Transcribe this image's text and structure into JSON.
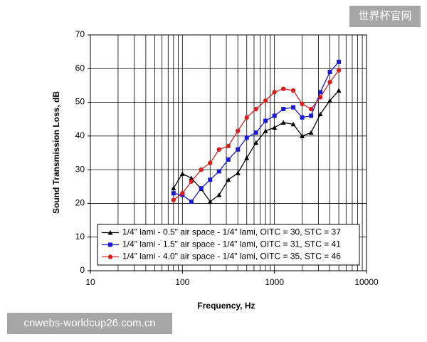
{
  "chart_data": {
    "type": "line",
    "x_label": "Frequency, Hz",
    "y_label": "Sound Transmission Loss, dB",
    "x": [
      80,
      100,
      125,
      160,
      200,
      250,
      315,
      400,
      500,
      630,
      800,
      1000,
      1250,
      1600,
      2000,
      2500,
      3150,
      4000,
      5000
    ],
    "series": [
      {
        "name": "1/4\" lami - 0.5\" air space - 1/4\" lami, OITC = 30, STC = 37",
        "color": "#000000",
        "marker": "triangle",
        "values": [
          24.5,
          28.8,
          27.5,
          24.3,
          20.5,
          22.5,
          27,
          29,
          33.5,
          38,
          41.5,
          42.5,
          44,
          43.5,
          40,
          41,
          46.5,
          50.5,
          53.5
        ]
      },
      {
        "name": "1/4\" lami - 1.5\" air space - 1/4\" lami, OITC = 31, STC = 41",
        "color": "#1a1ad0",
        "marker": "square",
        "values": [
          23,
          22.5,
          20.5,
          24.5,
          27,
          29.5,
          33,
          36,
          39.5,
          41,
          44.5,
          46,
          48,
          48.5,
          45.5,
          46,
          53,
          59,
          62
        ]
      },
      {
        "name": "1/4\" lami - 4.0\" air space - 1/4\" lami, OITC = 35, STC = 46",
        "color": "#d42020",
        "marker": "circle",
        "values": [
          21,
          23,
          26.5,
          30,
          32,
          36,
          37,
          41.5,
          45.5,
          48,
          50.5,
          53,
          54,
          53.5,
          49.5,
          48,
          51.5,
          56,
          59.5
        ]
      }
    ],
    "xlim": [
      10,
      10000
    ],
    "xticks": [
      10,
      100,
      1000,
      10000
    ],
    "x_log": true,
    "ylim": [
      0,
      70
    ],
    "yticks": [
      0,
      10,
      20,
      30,
      40,
      50,
      60,
      70
    ],
    "grid": true,
    "legend": "lower-right"
  },
  "watermarks": [
    "世界杯官网",
    "cnwebs-worldcup26.com.cn"
  ]
}
